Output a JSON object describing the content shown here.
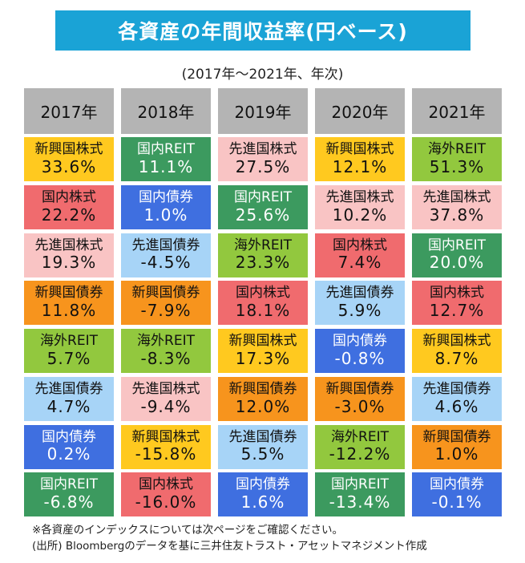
{
  "title": "各資産の年間収益率(円ベース)",
  "subtitle": "(2017年～2021年、年次)",
  "notes": [
    "※各資産のインデックスについては次ページをご確認ください。",
    "(出所) Bloombergのデータを基に三井住友トラスト・アセットマネジメント作成"
  ],
  "asset_colors": {
    "新興国株式": {
      "bg": "#ffc91f",
      "fg": "#111111"
    },
    "国内REIT": {
      "bg": "#3c9a5f",
      "fg": "#ffffff"
    },
    "先進国株式": {
      "bg": "#f9c4c4",
      "fg": "#111111"
    },
    "海外REIT": {
      "bg": "#92c83e",
      "fg": "#111111"
    },
    "国内株式": {
      "bg": "#f06b6e",
      "fg": "#111111"
    },
    "国内債券": {
      "bg": "#3f6fe0",
      "fg": "#ffffff"
    },
    "先進国債券": {
      "bg": "#a7d4f7",
      "fg": "#111111"
    },
    "新興国債券": {
      "bg": "#f7941d",
      "fg": "#111111"
    }
  },
  "chart_data": {
    "type": "table",
    "title": "各資産の年間収益率(円ベース)",
    "subtitle": "(2017年～2021年、年次)",
    "unit": "%",
    "columns": [
      "2017年",
      "2018年",
      "2019年",
      "2020年",
      "2021年"
    ],
    "ranks": [
      [
        {
          "asset": "新興国株式",
          "value": "33.6%"
        },
        {
          "asset": "国内REIT",
          "value": "11.1%"
        },
        {
          "asset": "先進国株式",
          "value": "27.5%"
        },
        {
          "asset": "新興国株式",
          "value": "12.1%"
        },
        {
          "asset": "海外REIT",
          "value": "51.3%"
        }
      ],
      [
        {
          "asset": "国内株式",
          "value": "22.2%"
        },
        {
          "asset": "国内債券",
          "value": "1.0%"
        },
        {
          "asset": "国内REIT",
          "value": "25.6%"
        },
        {
          "asset": "先進国株式",
          "value": "10.2%"
        },
        {
          "asset": "先進国株式",
          "value": "37.8%"
        }
      ],
      [
        {
          "asset": "先進国株式",
          "value": "19.3%"
        },
        {
          "asset": "先進国債券",
          "value": "-4.5%"
        },
        {
          "asset": "海外REIT",
          "value": "23.3%"
        },
        {
          "asset": "国内株式",
          "value": "7.4%"
        },
        {
          "asset": "国内REIT",
          "value": "20.0%"
        }
      ],
      [
        {
          "asset": "新興国債券",
          "value": "11.8%"
        },
        {
          "asset": "新興国債券",
          "value": "-7.9%"
        },
        {
          "asset": "国内株式",
          "value": "18.1%"
        },
        {
          "asset": "先進国債券",
          "value": "5.9%"
        },
        {
          "asset": "国内株式",
          "value": "12.7%"
        }
      ],
      [
        {
          "asset": "海外REIT",
          "value": "5.7%"
        },
        {
          "asset": "海外REIT",
          "value": "-8.3%"
        },
        {
          "asset": "新興国株式",
          "value": "17.3%"
        },
        {
          "asset": "国内債券",
          "value": "-0.8%"
        },
        {
          "asset": "新興国株式",
          "value": "8.7%"
        }
      ],
      [
        {
          "asset": "先進国債券",
          "value": "4.7%"
        },
        {
          "asset": "先進国株式",
          "value": "-9.4%"
        },
        {
          "asset": "新興国債券",
          "value": "12.0%"
        },
        {
          "asset": "新興国債券",
          "value": "-3.0%"
        },
        {
          "asset": "先進国債券",
          "value": "4.6%"
        }
      ],
      [
        {
          "asset": "国内債券",
          "value": "0.2%"
        },
        {
          "asset": "新興国株式",
          "value": "-15.8%"
        },
        {
          "asset": "先進国債券",
          "value": "5.5%"
        },
        {
          "asset": "海外REIT",
          "value": "-12.2%"
        },
        {
          "asset": "新興国債券",
          "value": "1.0%"
        }
      ],
      [
        {
          "asset": "国内REIT",
          "value": "-6.8%"
        },
        {
          "asset": "国内株式",
          "value": "-16.0%"
        },
        {
          "asset": "国内債券",
          "value": "1.6%"
        },
        {
          "asset": "国内REIT",
          "value": "-13.4%"
        },
        {
          "asset": "国内債券",
          "value": "-0.1%"
        }
      ]
    ]
  }
}
